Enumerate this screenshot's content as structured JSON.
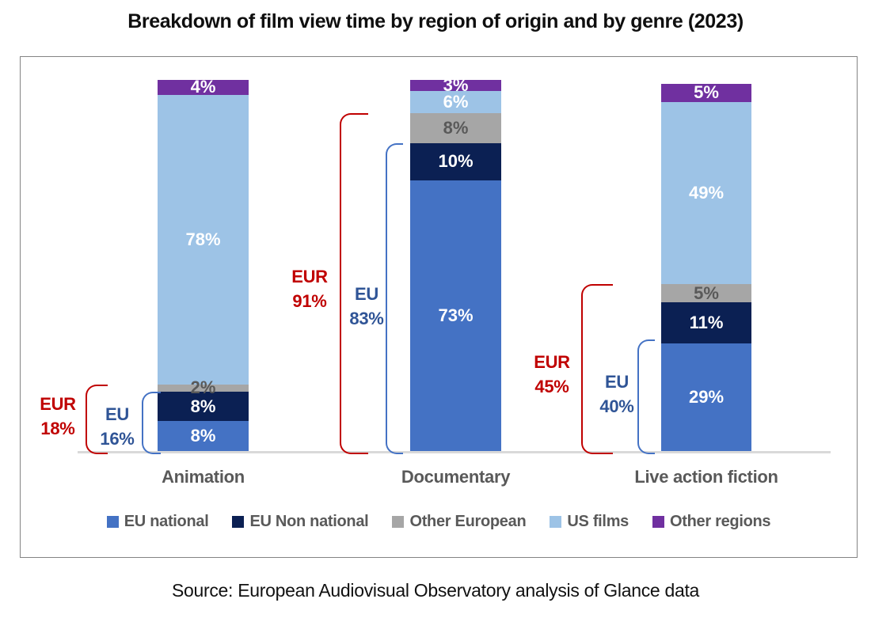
{
  "title": "Breakdown of film view time by region of origin and by genre (2023)",
  "source": "Source: European Audiovisual Observatory analysis of Glance data",
  "chart_data": {
    "type": "bar",
    "subtype": "stacked-100-percent-column",
    "categories": [
      "Animation",
      "Documentary",
      "Live action fiction"
    ],
    "series": [
      {
        "name": "EU national",
        "color": "#4472C4",
        "label_color": "#FFFFFF",
        "values": [
          8,
          73,
          29
        ]
      },
      {
        "name": "EU Non national",
        "color": "#0B2053",
        "label_color": "#FFFFFF",
        "values": [
          8,
          10,
          11
        ]
      },
      {
        "name": "Other European",
        "color": "#A6A6A6",
        "label_color": "#595959",
        "values": [
          2,
          8,
          5
        ]
      },
      {
        "name": "US films",
        "color": "#9DC3E6",
        "label_color": "#FFFFFF",
        "values": [
          78,
          6,
          49
        ]
      },
      {
        "name": "Other regions",
        "color": "#7030A0",
        "label_color": "#FFFFFF",
        "values": [
          4,
          3,
          5
        ]
      }
    ],
    "value_suffix": "%",
    "annotations": [
      {
        "category": "Animation",
        "eur_label": "EUR",
        "eur_value": "18%",
        "eu_label": "EU",
        "eu_value": "16%"
      },
      {
        "category": "Documentary",
        "eur_label": "EUR",
        "eur_value": "91%",
        "eu_label": "EU",
        "eu_value": "83%"
      },
      {
        "category": "Live action fiction",
        "eur_label": "EUR",
        "eur_value": "45%",
        "eu_label": "EU",
        "eu_value": "40%"
      }
    ],
    "annotation_colors": {
      "eur_text": "#C00000",
      "eu_text": "#2F5496",
      "eur_bracket": "#C00000",
      "eu_bracket": "#4472C4"
    },
    "legend_position": "bottom",
    "grid": false,
    "ylim": [
      0,
      100
    ]
  }
}
